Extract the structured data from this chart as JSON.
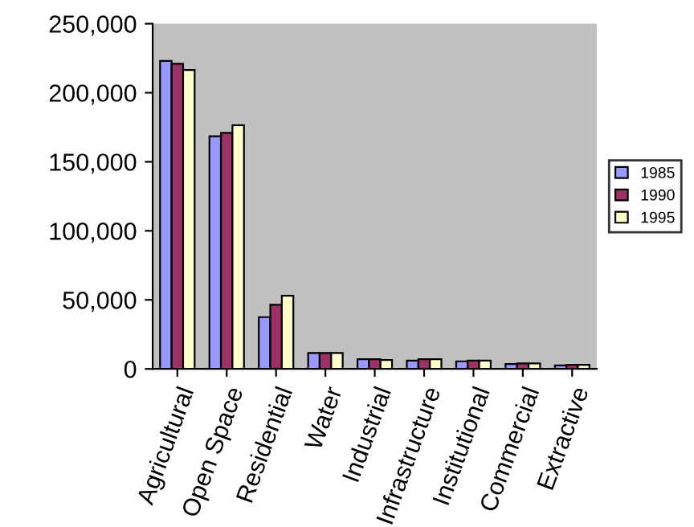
{
  "chart_data": {
    "type": "bar",
    "categories": [
      "Agricultural",
      "Open Space",
      "Residential",
      "Water",
      "Industrial",
      "Infrastructure",
      "Institutional",
      "Commercial",
      "Extractive"
    ],
    "series": [
      {
        "name": "1985",
        "color": "#9999ff",
        "values": [
          223000,
          168500,
          37500,
          11500,
          7000,
          6000,
          5500,
          3500,
          2500
        ]
      },
      {
        "name": "1990",
        "color": "#993366",
        "values": [
          221000,
          171000,
          46500,
          11500,
          7000,
          7000,
          6000,
          4000,
          3000
        ]
      },
      {
        "name": "1995",
        "color": "#ffffcc",
        "values": [
          216500,
          176500,
          53000,
          11500,
          6500,
          7000,
          6000,
          4000,
          3000
        ]
      }
    ],
    "ylim": [
      0,
      250000
    ],
    "yticks": [
      {
        "value": 0,
        "label": "0"
      },
      {
        "value": 50000,
        "label": "50,000"
      },
      {
        "value": 100000,
        "label": "100,000"
      },
      {
        "value": 150000,
        "label": "150,000"
      },
      {
        "value": 200000,
        "label": "200,000"
      },
      {
        "value": 250000,
        "label": "250,000"
      }
    ],
    "grid": false,
    "legend": "right"
  }
}
